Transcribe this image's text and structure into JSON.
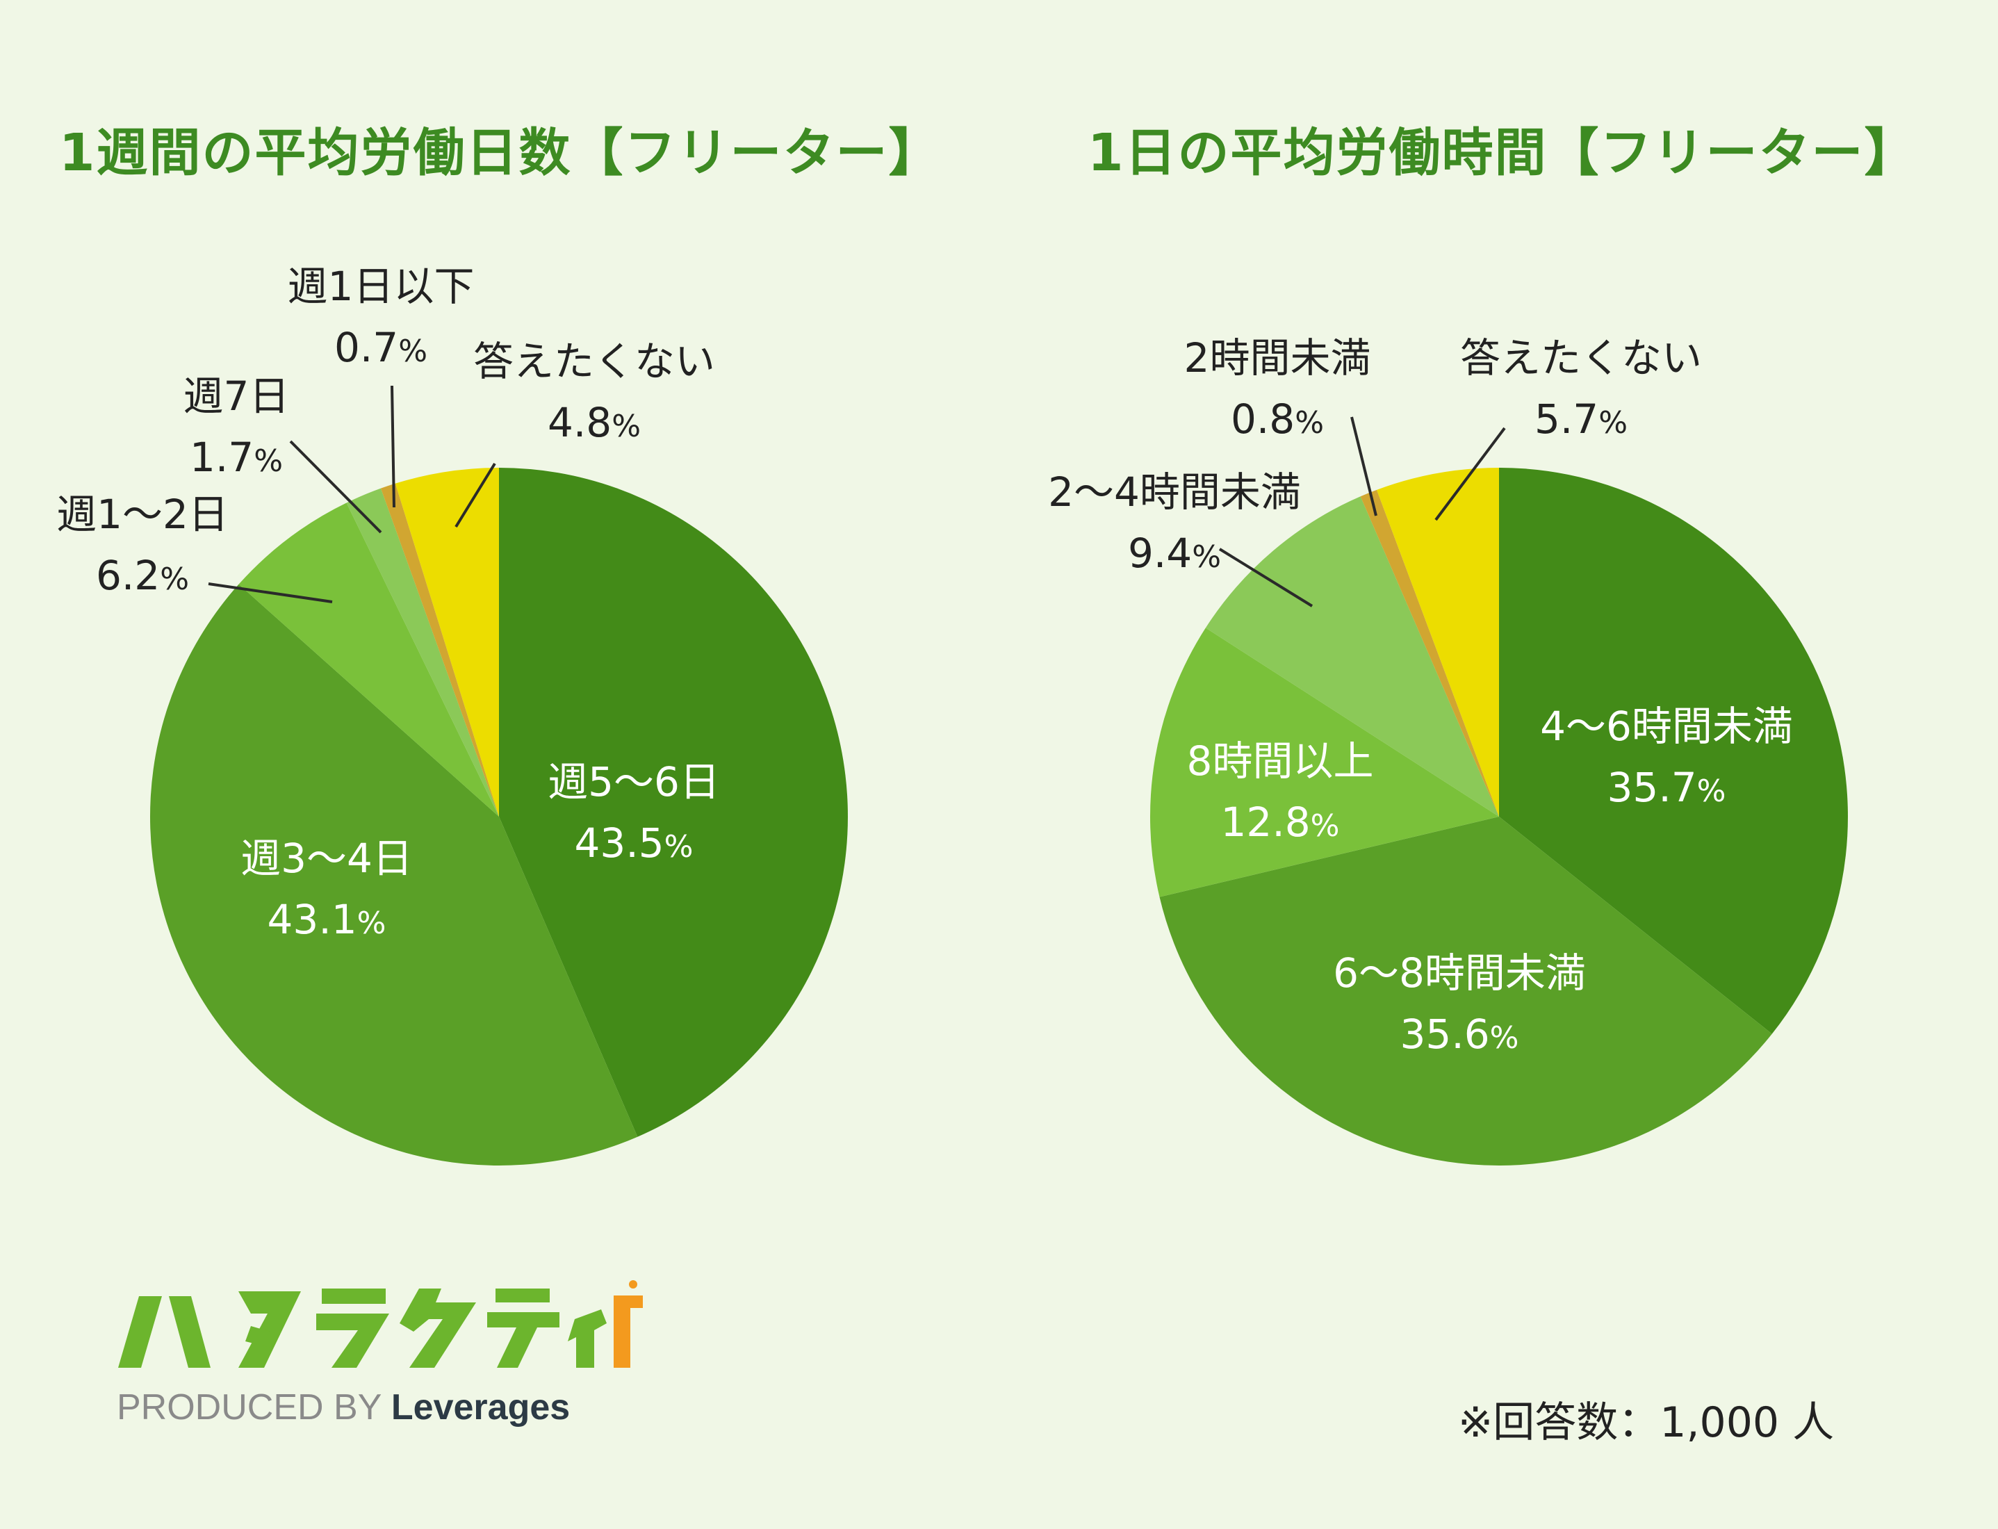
{
  "chart_data": [
    {
      "type": "pie",
      "title": "1週間の平均労働日数【フリーター】",
      "unit": "%",
      "slices": [
        {
          "label": "週5〜6日",
          "value": 43.5,
          "value_text": "43.5",
          "color": "#438b18"
        },
        {
          "label": "週3〜4日",
          "value": 43.1,
          "value_text": "43.1",
          "color": "#5aa027"
        },
        {
          "label": "週1〜2日",
          "value": 6.2,
          "value_text": "6.2",
          "color": "#7ac13a"
        },
        {
          "label": "週7日",
          "value": 1.7,
          "value_text": "1.7",
          "color": "#8bc958"
        },
        {
          "label": "週1日以下",
          "value": 0.7,
          "value_text": "0.7",
          "color": "#d1a631"
        },
        {
          "label": "答えたくない",
          "value": 4.8,
          "value_text": "4.8",
          "color": "#ecdd00"
        }
      ]
    },
    {
      "type": "pie",
      "title": "1日の平均労働時間【フリーター】",
      "unit": "%",
      "slices": [
        {
          "label": "4〜6時間未満",
          "value": 35.7,
          "value_text": "35.7",
          "color": "#438b18"
        },
        {
          "label": "6〜8時間未満",
          "value": 35.6,
          "value_text": "35.6",
          "color": "#5aa027"
        },
        {
          "label": "8時間以上",
          "value": 12.8,
          "value_text": "12.8",
          "color": "#7ac13a"
        },
        {
          "label": "2〜4時間未満",
          "value": 9.4,
          "value_text": "9.4",
          "color": "#8bc958"
        },
        {
          "label": "2時間未満",
          "value": 0.8,
          "value_text": "0.8",
          "color": "#d1a631"
        },
        {
          "label": "答えたくない",
          "value": 5.7,
          "value_text": "5.7",
          "color": "#ecdd00"
        }
      ]
    }
  ],
  "footer": {
    "note": "※回答数：1,000 人",
    "logo_text": "ハタラクティブ",
    "produced_by": "PRODUCED BY",
    "brand": "Leverages"
  },
  "colors": {
    "background": "#f0f7e6",
    "title": "#3d8b22",
    "label_inside": "#ffffff",
    "label_outside": "#222222",
    "logo_green": "#6cb52d",
    "logo_orange": "#f39a1e"
  }
}
